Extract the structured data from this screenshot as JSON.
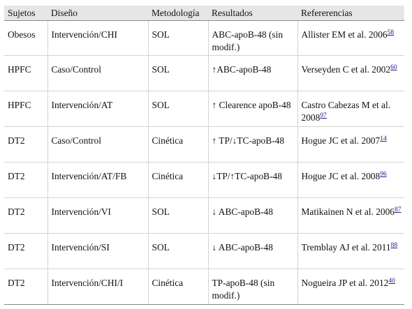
{
  "table": {
    "headers": [
      "Sujetos",
      "Diseño",
      "Metodología",
      "Resultados",
      "Refererencias"
    ],
    "rows": [
      {
        "sujetos": "Obesos",
        "diseno": "Intervención/CHI",
        "metodologia": "SOL",
        "resultados": "ABC-apoB-48 (sin modif.)",
        "ref_text": "Allister EM et al. 2006",
        "ref_num": "58"
      },
      {
        "sujetos": "HPFC",
        "diseno": "Caso/Control",
        "metodologia": "SOL",
        "resultados": "↑ABC-apoB-48",
        "ref_text": "Verseyden C et al. 2002",
        "ref_num": "60"
      },
      {
        "sujetos": "HPFC",
        "diseno": "Intervención/AT",
        "metodologia": "SOL",
        "resultados": "↑ Clearence apoB-48",
        "ref_text": "Castro Cabezas M et al. 2008",
        "ref_num": "97"
      },
      {
        "sujetos": "DT2",
        "diseno": "Caso/Control",
        "metodologia": "Cinética",
        "resultados": "↑ TP/↓TC-apoB-48",
        "ref_text": "Hogue JC et al. 2007",
        "ref_num": "14"
      },
      {
        "sujetos": "DT2",
        "diseno": "Intervención/AT/FB",
        "metodologia": "Cinética",
        "resultados": "↓TP/↑TC-apoB-48",
        "ref_text": "Hogue JC et al. 2008",
        "ref_num": "96"
      },
      {
        "sujetos": "DT2",
        "diseno": "Intervención/VI",
        "metodologia": "SOL",
        "resultados": "↓ ABC-apoB-48",
        "ref_text": "Matikainen N et al. 2006",
        "ref_num": "87"
      },
      {
        "sujetos": "DT2",
        "diseno": "Intervención/SI",
        "metodologia": "SOL",
        "resultados": "↓ ABC-apoB-48",
        "ref_text": "Tremblay AJ et al. 2011",
        "ref_num": "88"
      },
      {
        "sujetos": "DT2",
        "diseno": "Intervención/CHI/I",
        "metodologia": "Cinética",
        "resultados": "TP-apoB-48 (sin modif.)",
        "ref_text": "Nogueira JP et al. 2012",
        "ref_num": "40"
      }
    ]
  }
}
